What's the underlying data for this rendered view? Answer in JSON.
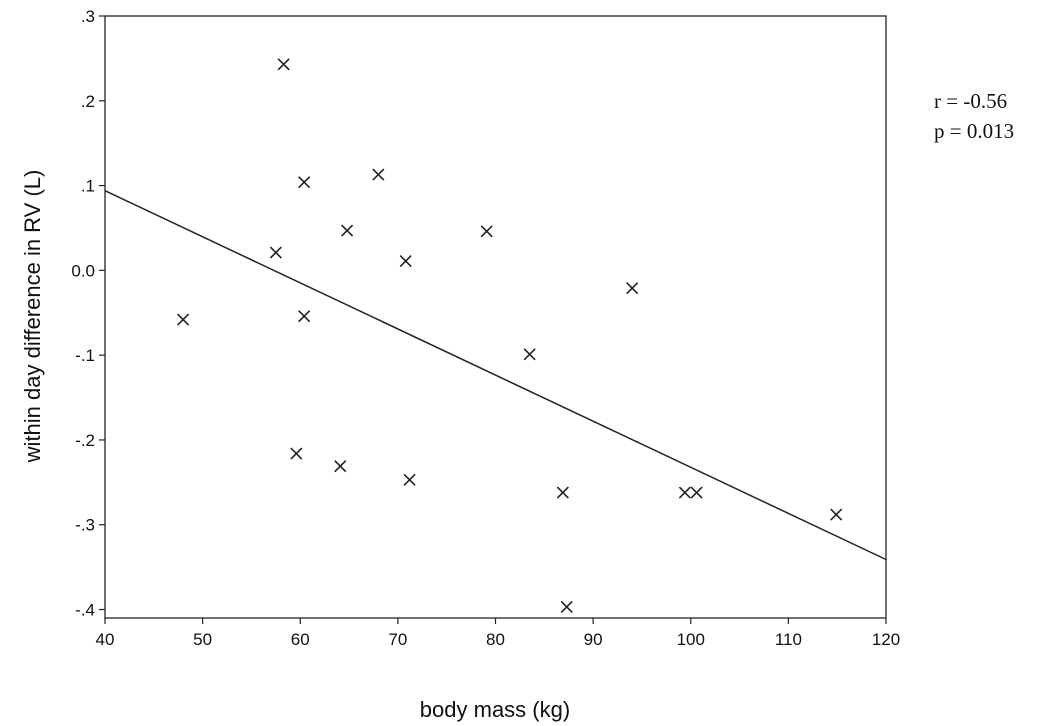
{
  "chart_data": {
    "type": "scatter",
    "title": "",
    "xlabel": "body mass (kg)",
    "ylabel": "within day difference in RV (L)",
    "xlim": [
      40,
      120
    ],
    "ylim": [
      -0.41,
      0.3
    ],
    "xticks": [
      40,
      50,
      60,
      70,
      80,
      90,
      100,
      110,
      120
    ],
    "xtick_labels": [
      "40",
      "50",
      "60",
      "70",
      "80",
      "90",
      "100",
      "110",
      "120"
    ],
    "yticks": [
      0.3,
      0.2,
      0.1,
      0.0,
      -0.1,
      -0.2,
      -0.3,
      -0.4
    ],
    "ytick_labels": [
      ".3",
      ".2",
      ".1",
      "0.0",
      "-.1",
      "-.2",
      "-.3",
      "-.4"
    ],
    "grid": false,
    "marker": "x",
    "points": [
      {
        "x": 48,
        "y": -0.058
      },
      {
        "x": 57.5,
        "y": 0.021
      },
      {
        "x": 58.3,
        "y": 0.243
      },
      {
        "x": 59.6,
        "y": -0.216
      },
      {
        "x": 60.4,
        "y": 0.104
      },
      {
        "x": 60.4,
        "y": -0.054
      },
      {
        "x": 64.1,
        "y": -0.231
      },
      {
        "x": 64.8,
        "y": 0.047
      },
      {
        "x": 68,
        "y": 0.113
      },
      {
        "x": 70.8,
        "y": 0.011
      },
      {
        "x": 71.2,
        "y": -0.247
      },
      {
        "x": 79.1,
        "y": 0.046
      },
      {
        "x": 83.5,
        "y": -0.099
      },
      {
        "x": 86.9,
        "y": -0.262
      },
      {
        "x": 87.3,
        "y": -0.397
      },
      {
        "x": 94,
        "y": -0.021
      },
      {
        "x": 99.4,
        "y": -0.262
      },
      {
        "x": 100.6,
        "y": -0.262
      },
      {
        "x": 114.9,
        "y": -0.288
      }
    ],
    "fit_line": {
      "x": [
        40,
        120
      ],
      "y": [
        0.094,
        -0.341
      ]
    },
    "annotations": [
      "r = -0.56",
      "p = 0.013"
    ]
  }
}
